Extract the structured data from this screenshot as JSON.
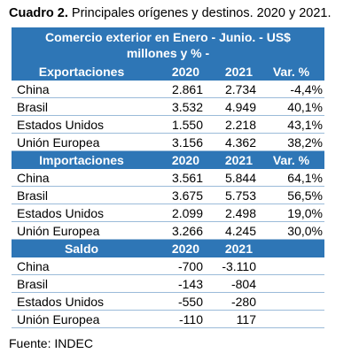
{
  "caption": {
    "label": "Cuadro 2.",
    "text": " Principales orígenes y destinos. 2020 y 2021."
  },
  "table": {
    "title_line1": "Comercio exterior en Enero - Junio. - US$",
    "title_line2": "millones y % -",
    "sections": [
      {
        "header": [
          "Exportaciones",
          "2020",
          "2021",
          "Var. %"
        ],
        "rows": [
          [
            "China",
            "2.861",
            "2.734",
            "-4,4%"
          ],
          [
            "Brasil",
            "3.532",
            "4.949",
            "40,1%"
          ],
          [
            "Estados Unidos",
            "1.550",
            "2.218",
            "43,1%"
          ],
          [
            "Unión Europea",
            "3.156",
            "4.362",
            "38,2%"
          ]
        ]
      },
      {
        "header": [
          "Importaciones",
          "2020",
          "2021",
          "Var. %"
        ],
        "rows": [
          [
            "China",
            "3.561",
            "5.844",
            "64,1%"
          ],
          [
            "Brasil",
            "3.675",
            "5.753",
            "56,5%"
          ],
          [
            "Estados Unidos",
            "2.099",
            "2.498",
            "19,0%"
          ],
          [
            "Unión Europea",
            "3.266",
            "4.245",
            "30,0%"
          ]
        ]
      },
      {
        "header": [
          "Saldo",
          "2020",
          "2021",
          ""
        ],
        "rows": [
          [
            "China",
            "-700",
            "-3.110",
            ""
          ],
          [
            "Brasil",
            "-143",
            "-804",
            ""
          ],
          [
            "Estados Unidos",
            "-550",
            "-280",
            ""
          ],
          [
            "Unión Europea",
            "-110",
            "117",
            ""
          ]
        ]
      }
    ]
  },
  "source": "Fuente: INDEC"
}
